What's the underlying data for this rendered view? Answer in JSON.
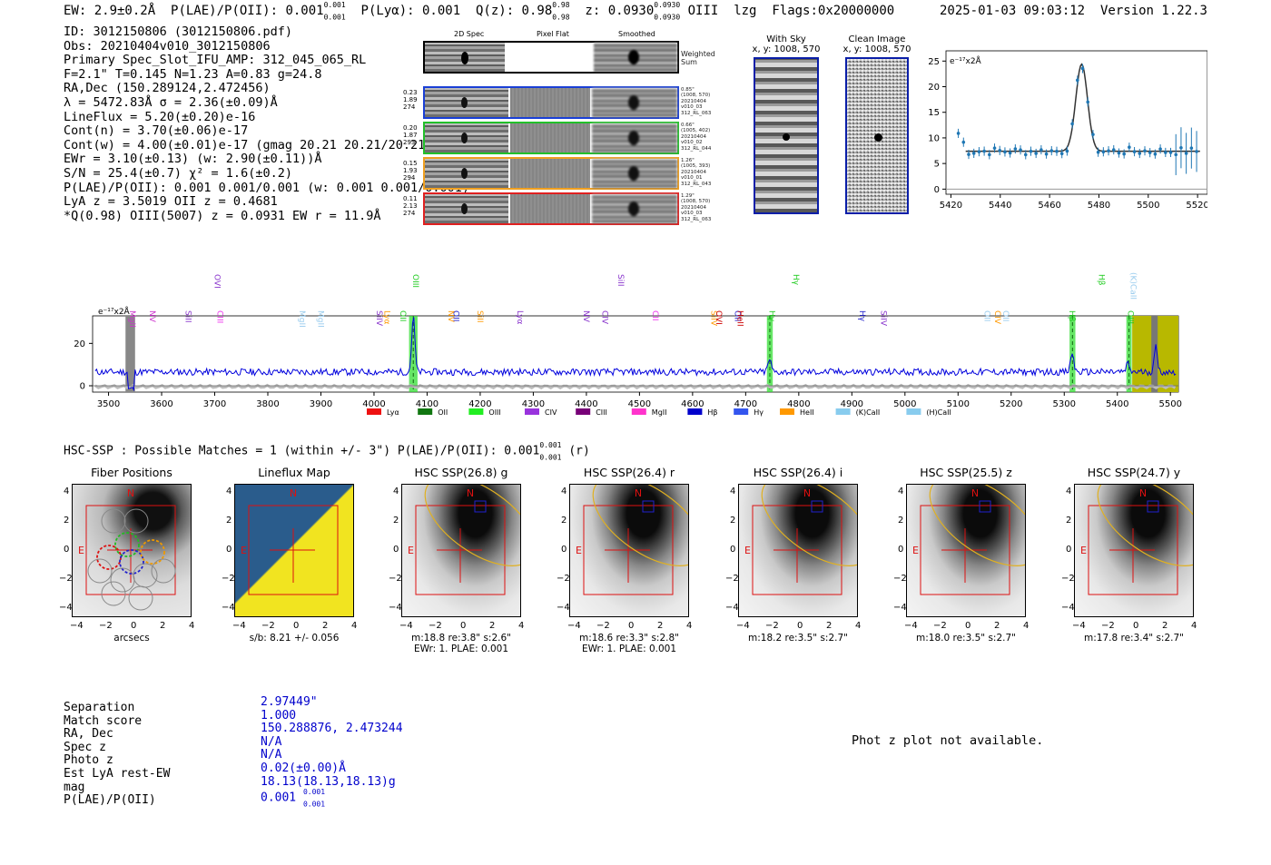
{
  "header": {
    "ew": "EW: 2.9±0.2Å",
    "plae_label": "P(LAE)/P(OII): 0.001",
    "plae_hi": "0.001",
    "plae_lo": "0.001",
    "plya": "P(Lyα): 0.001",
    "qz_label": "Q(z): 0.98",
    "qz_hi": "0.98",
    "qz_lo": "0.98",
    "z_label": "z: 0.0930",
    "z_hi": "0.0930",
    "z_lo": "0.0930",
    "line": "OIII",
    "method": "lzg",
    "flags": "Flags:0x20000000",
    "datetime": "2025-01-03 09:03:12",
    "version": "Version 1.22.3"
  },
  "info": [
    "ID: 3012150806 (3012150806.pdf)",
    "Obs: 20210404v010_3012150806",
    "Primary Spec_Slot_IFU_AMP: 312_045_065_RL",
    "F=2.1\"  T=0.145  N=1.23  A=0.83  g=24.8",
    "RA,Dec (150.289124,2.472456)",
    "λ = 5472.83Å  σ = 2.36(±0.09)Å",
    "LineFlux = 5.20(±0.20)e-16",
    "Cont(n) = 3.70(±0.06)e-17",
    "Cont(w) = 4.00(±0.01)e-17 (gmag 20.21 20.21/20.21)",
    "EWr = 3.10(±0.13) (w: 2.90(±0.11))Å",
    "S/N = 25.4(±0.7)  χ² = 1.6(±0.2)",
    "P(LAE)/P(OII): 0.001 0.001/0.001 (w: 0.001 0.001/0.001)",
    "LyA z = 3.5019  OII z = 0.4681",
    "*Q(0.98) OIII(5007) z = 0.0931  EW r = 11.9Å"
  ],
  "spec2d": {
    "headers": [
      "2D Spec",
      "Pixel Flat",
      "Smoothed"
    ],
    "weighted_label": "Weighted Sum",
    "fibers": [
      {
        "info": [
          "0.23",
          "1.89",
          "274"
        ],
        "lab": [
          "0.85\"",
          "(1008, 570)",
          "20210404",
          "v010_03",
          "312_RL_063"
        ],
        "color": "#1a3fd6"
      },
      {
        "info": [
          "0.20",
          "1.87",
          "293"
        ],
        "lab": [
          "0.66\"",
          "(1005, 402)",
          "20210404",
          "v010_02",
          "312_RL_044"
        ],
        "color": "#22c02a"
      },
      {
        "info": [
          "0.15",
          "1.93",
          "294"
        ],
        "lab": [
          "1.26\"",
          "(1005, 393)",
          "20210404",
          "v010_01",
          "312_RL_043"
        ],
        "color": "#f0a020"
      },
      {
        "info": [
          "0.11",
          "2.13",
          "274"
        ],
        "lab": [
          "1.29\"",
          "(1008, 570)",
          "20210404",
          "v010_03",
          "312_RL_063"
        ],
        "color": "#e02020"
      }
    ]
  },
  "sky": {
    "with_sky": "With Sky",
    "with_sky_xy": "x, y: 1008, 570",
    "clean": "Clean Image",
    "clean_xy": "x, y: 1008, 570"
  },
  "zoom_plot": {
    "unit": "e⁻¹⁷x2Å",
    "x_ticks": [
      "5420",
      "5440",
      "5460",
      "5480",
      "5500",
      "5520"
    ],
    "y_ticks": [
      "25",
      "20",
      "15",
      "10",
      "5",
      "0"
    ],
    "x_range": [
      5418,
      5524
    ],
    "y_range": [
      -1,
      27
    ],
    "peak_center": 5473,
    "peak_sigma": 2.36,
    "peak_amp": 17.0,
    "continuum": 7.4
  },
  "full_spectrum": {
    "unit": "e⁻¹⁷x2Å",
    "x_ticks": [
      "3500",
      "3600",
      "3700",
      "3800",
      "3900",
      "4000",
      "4100",
      "4200",
      "4300",
      "4400",
      "4500",
      "4600",
      "4700",
      "4800",
      "4900",
      "5000",
      "5100",
      "5200",
      "5300",
      "5400",
      "5500"
    ],
    "y_ticks": [
      "20",
      "0"
    ],
    "x_range": [
      3470,
      5515
    ],
    "y_range": [
      -3,
      33
    ],
    "peaks": [
      {
        "w": 4074,
        "amp": 26,
        "sigma": 3
      },
      {
        "w": 4745,
        "amp": 6,
        "sigma": 3
      },
      {
        "w": 5315,
        "amp": 9,
        "sigma": 3
      },
      {
        "w": 5420,
        "amp": 4,
        "sigma": 3
      },
      {
        "w": 5472,
        "amp": 12,
        "sigma": 3
      }
    ],
    "line_labels": [
      {
        "t": "MgII",
        "w": 3540,
        "c": "#cc33cc"
      },
      {
        "t": "NV",
        "w": 3578,
        "c": "#cc33cc"
      },
      {
        "t": "SiII",
        "w": 3645,
        "c": "#8833cc"
      },
      {
        "t": "OVI",
        "w": 3700,
        "c": "#8833cc"
      },
      {
        "t": "CIII",
        "w": 3705,
        "c": "#ee33ee"
      },
      {
        "t": "MgII",
        "w": 3860,
        "c": "#99ccee"
      },
      {
        "t": "MgII",
        "w": 3895,
        "c": "#99ccee"
      },
      {
        "t": "SiIV",
        "w": 4005,
        "c": "#8833cc"
      },
      {
        "t": "Lyα",
        "w": 4020,
        "c": "#ff9900"
      },
      {
        "t": "OII",
        "w": 4050,
        "c": "#22cc22"
      },
      {
        "t": "OIII",
        "w": 4074,
        "c": "#22cc22"
      },
      {
        "t": "NV",
        "w": 4140,
        "c": "#ff9900"
      },
      {
        "t": "OII",
        "w": 4150,
        "c": "#2222cc"
      },
      {
        "t": "SiII",
        "w": 4195,
        "c": "#ff9900"
      },
      {
        "t": "Lyα",
        "w": 4270,
        "c": "#8833cc"
      },
      {
        "t": "NV",
        "w": 4395,
        "c": "#8833cc"
      },
      {
        "t": "CIV",
        "w": 4430,
        "c": "#8833cc"
      },
      {
        "t": "SiII",
        "w": 4460,
        "c": "#8833cc"
      },
      {
        "t": "CII",
        "w": 4525,
        "c": "#ee33ee"
      },
      {
        "t": "SiIV",
        "w": 4635,
        "c": "#ff9900"
      },
      {
        "t": "OVI",
        "w": 4645,
        "c": "#cc0000"
      },
      {
        "t": "OII",
        "w": 4680,
        "c": "#2222cc"
      },
      {
        "t": "HeII",
        "w": 4685,
        "c": "#cc0000"
      },
      {
        "t": "Hγ",
        "w": 4745,
        "c": "#22cc22"
      },
      {
        "t": "Hγ",
        "w": 4790,
        "c": "#22cc22"
      },
      {
        "t": "Hγ",
        "w": 4915,
        "c": "#2222cc"
      },
      {
        "t": "SiIV",
        "w": 4955,
        "c": "#8833cc"
      },
      {
        "t": "OII",
        "w": 5150,
        "c": "#99ccee"
      },
      {
        "t": "CIV",
        "w": 5170,
        "c": "#ff9900"
      },
      {
        "t": "OII",
        "w": 5185,
        "c": "#99ccee"
      },
      {
        "t": "Hβ",
        "w": 5310,
        "c": "#22cc22"
      },
      {
        "t": "Hβ",
        "w": 5365,
        "c": "#22cc22"
      },
      {
        "t": "OIII",
        "w": 5420,
        "c": "#22cc22"
      },
      {
        "t": "(K)CaII",
        "w": 5425,
        "c": "#99ccee"
      }
    ],
    "legend": [
      {
        "label": "Lyα",
        "color": "#ee1111"
      },
      {
        "label": "OII",
        "color": "#117711"
      },
      {
        "label": "OIII",
        "color": "#22ee22"
      },
      {
        "label": "CIV",
        "color": "#9933dd"
      },
      {
        "label": "CIII",
        "color": "#770077"
      },
      {
        "label": "MgII",
        "color": "#ff33cc"
      },
      {
        "label": "Hβ",
        "color": "#0000cc"
      },
      {
        "label": "Hγ",
        "color": "#3355ee"
      },
      {
        "label": "HeII",
        "color": "#ff9900"
      },
      {
        "label": "(K)CaII",
        "color": "#88ccee"
      },
      {
        "label": "(H)CaII",
        "color": "#88ccee"
      }
    ]
  },
  "hsc": {
    "title_prefix": "HSC-SSP : Possible Matches = 1 (within +/- 3\")  P(LAE)/P(OII): 0.001",
    "title_hi": "0.001",
    "title_lo": "0.001",
    "title_suffix": "(r)",
    "cutouts": [
      {
        "title": "Fiber Positions",
        "foot1": "arcsecs",
        "foot2": "",
        "kind": "fiber"
      },
      {
        "title": "Lineflux Map",
        "foot1": "s/b: 8.21 +/- 0.056",
        "foot2": "",
        "kind": "flux"
      },
      {
        "title": "HSC SSP(26.8) g",
        "foot1": "m:18.8  re:3.8\"  s:2.6\"",
        "foot2": "EWr: 1. PLAE: 0.001",
        "kind": "hsc"
      },
      {
        "title": "HSC SSP(26.4) r",
        "foot1": "m:18.6  re:3.3\"  s:2.8\"",
        "foot2": "EWr: 1. PLAE: 0.001",
        "kind": "hsc"
      },
      {
        "title": "HSC SSP(26.4) i",
        "foot1": "m:18.2  re:3.5\"  s:2.7\"",
        "foot2": "",
        "kind": "hsc"
      },
      {
        "title": "HSC SSP(25.5) z",
        "foot1": "m:18.0  re:3.5\"  s:2.7\"",
        "foot2": "",
        "kind": "hsc"
      },
      {
        "title": "HSC SSP(24.7) y",
        "foot1": "m:17.8  re:3.4\"  s:2.7\"",
        "foot2": "",
        "kind": "hsc"
      }
    ],
    "x_ticks": [
      "−4",
      "−2",
      "0",
      "2",
      "4"
    ],
    "y_ticks": [
      "4",
      "2",
      "0",
      "−2",
      "−4"
    ],
    "north": "N",
    "east": "E"
  },
  "match_table": {
    "keys": [
      "Separation",
      "Match score",
      "RA, Dec",
      "Spec z",
      "Photo z",
      "Est LyA rest-EW",
      "mag",
      "P(LAE)/P(OII)"
    ],
    "values": [
      "2.97449\"",
      "1.000",
      "150.288876, 2.473244",
      "N/A",
      "N/A",
      "0.02(±0.00)Å",
      "18.13(18.13,18.13)g",
      "0.001"
    ],
    "plae_hi": "0.001",
    "plae_lo": "0.001"
  },
  "photz_msg": "Phot z plot not available."
}
